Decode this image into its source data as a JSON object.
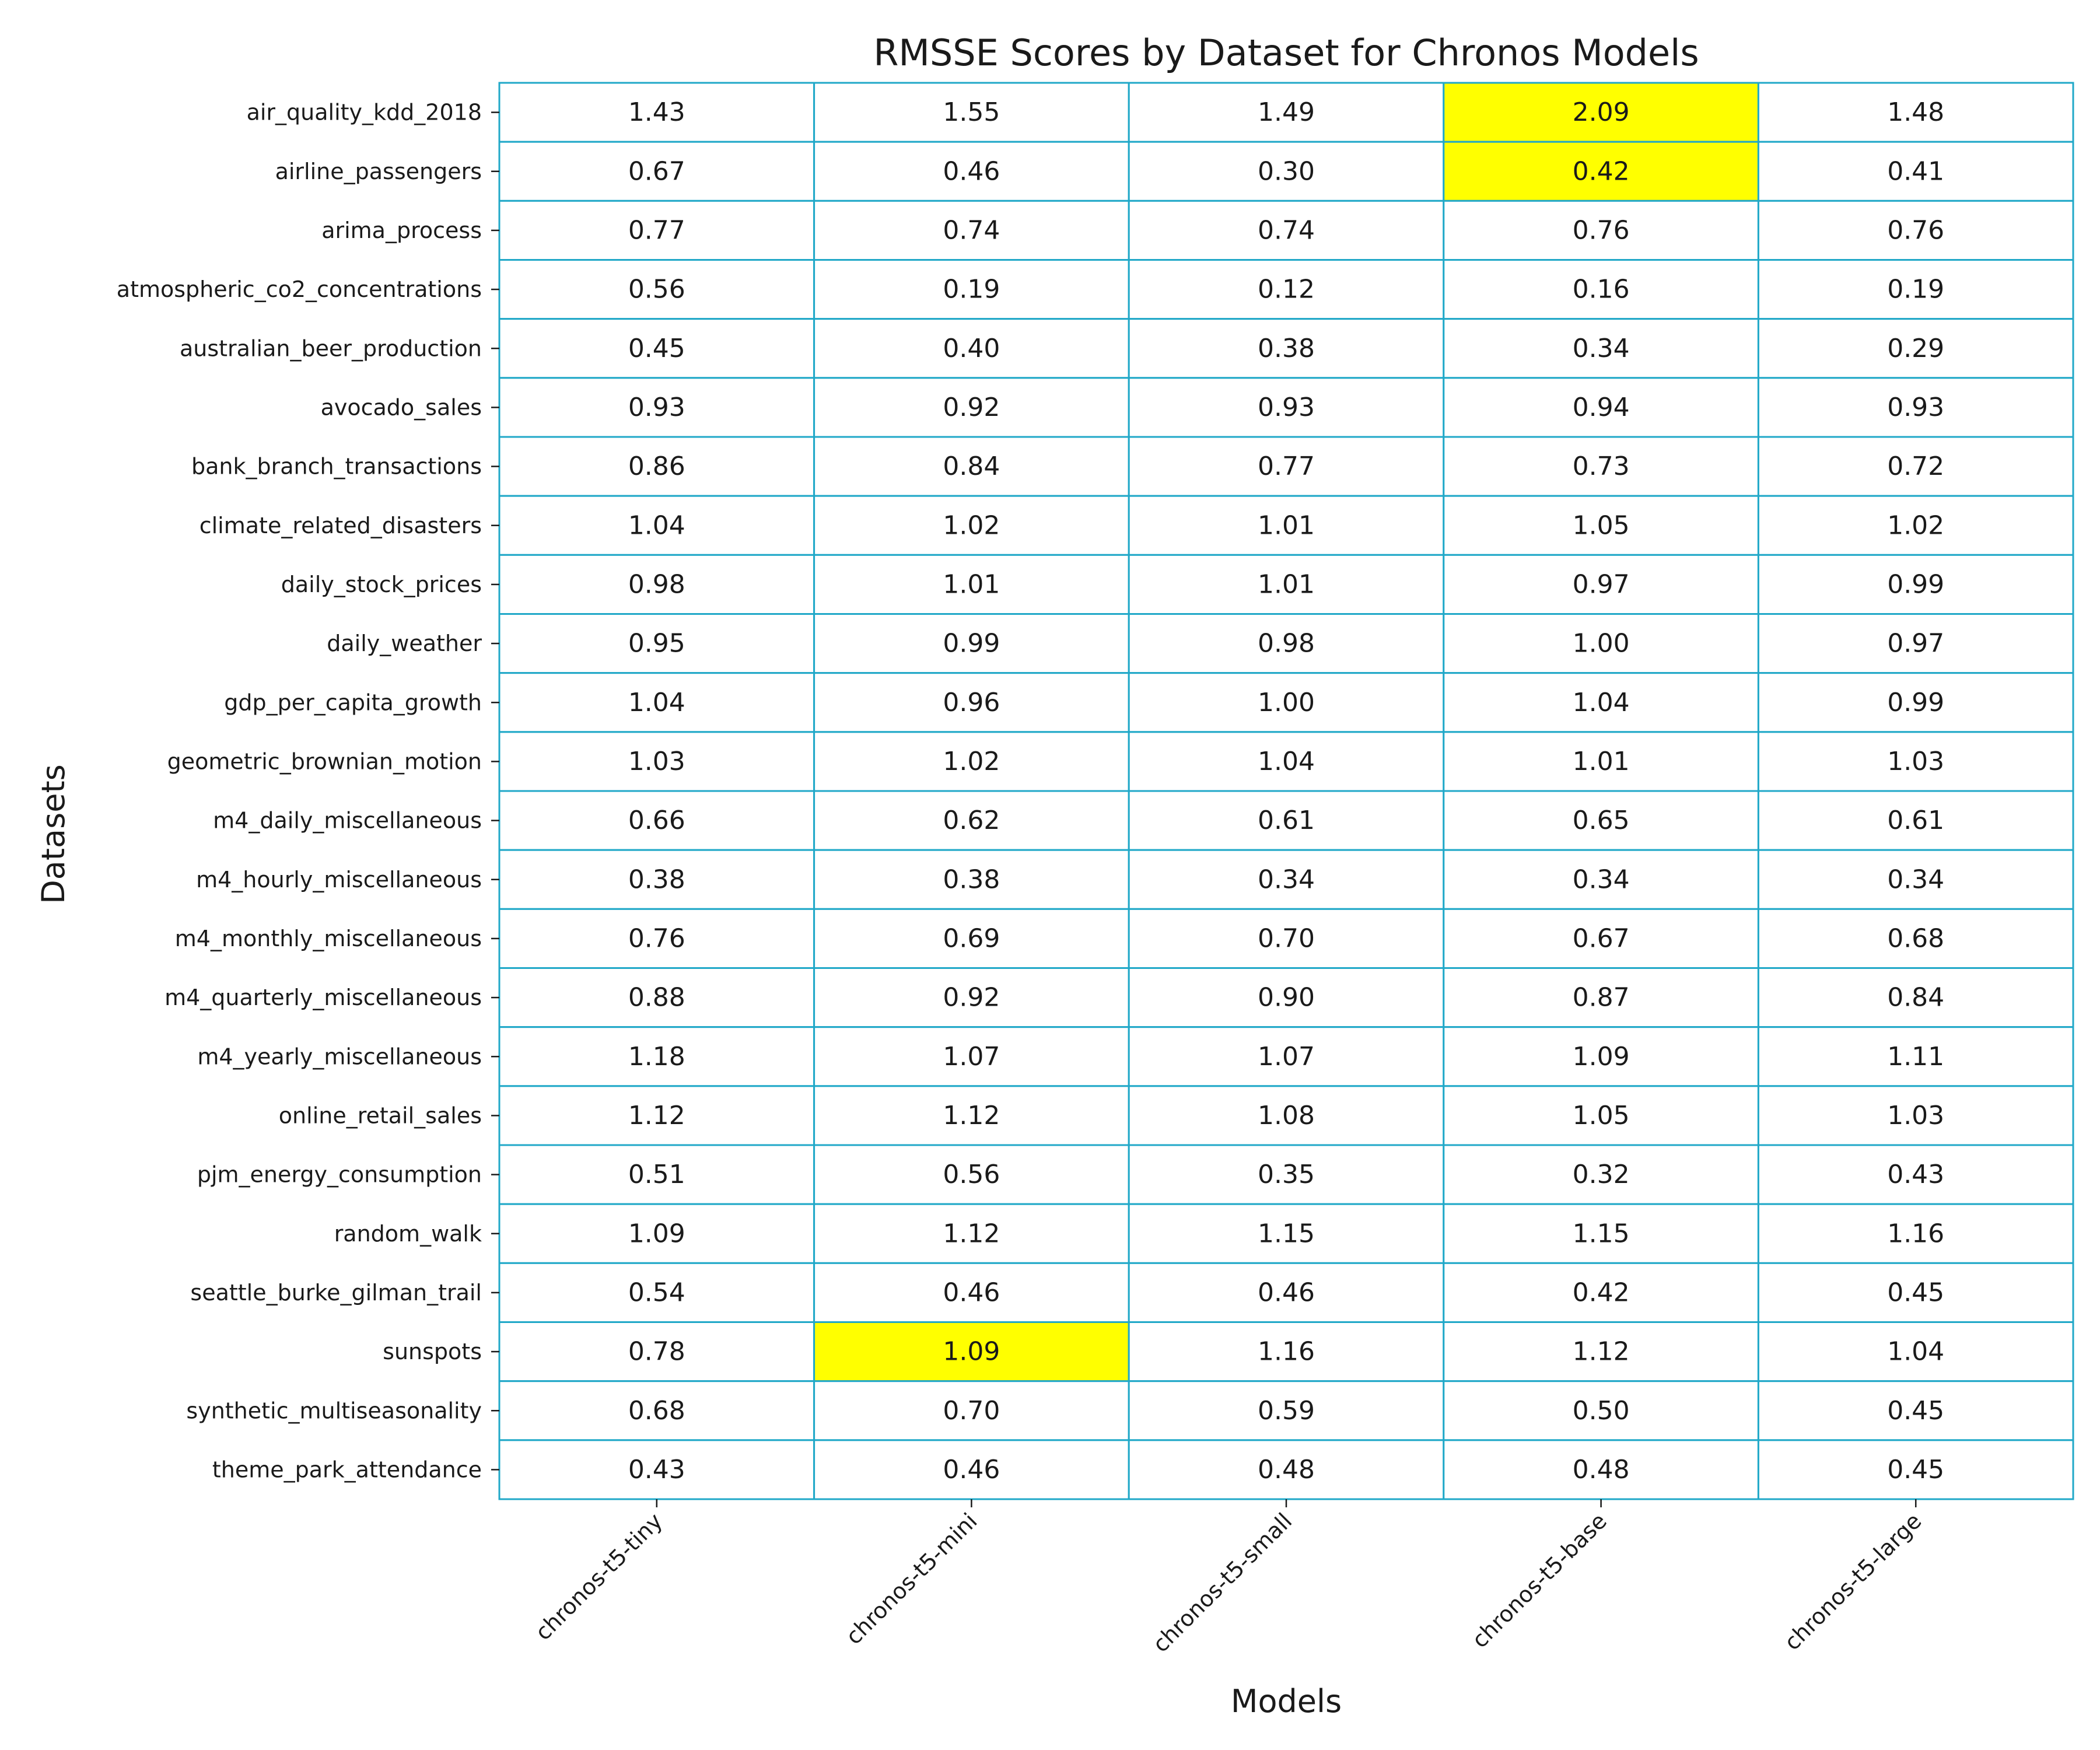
{
  "chart_data": {
    "type": "heatmap",
    "title": "RMSSE Scores by Dataset for Chronos Models",
    "xlabel": "Models",
    "ylabel": "Datasets",
    "columns": [
      "chronos-t5-tiny",
      "chronos-t5-mini",
      "chronos-t5-small",
      "chronos-t5-base",
      "chronos-t5-large"
    ],
    "rows": [
      "air_quality_kdd_2018",
      "airline_passengers",
      "arima_process",
      "atmospheric_co2_concentrations",
      "australian_beer_production",
      "avocado_sales",
      "bank_branch_transactions",
      "climate_related_disasters",
      "daily_stock_prices",
      "daily_weather",
      "gdp_per_capita_growth",
      "geometric_brownian_motion",
      "m4_daily_miscellaneous",
      "m4_hourly_miscellaneous",
      "m4_monthly_miscellaneous",
      "m4_quarterly_miscellaneous",
      "m4_yearly_miscellaneous",
      "online_retail_sales",
      "pjm_energy_consumption",
      "random_walk",
      "seattle_burke_gilman_trail",
      "sunspots",
      "synthetic_multiseasonality",
      "theme_park_attendance"
    ],
    "values": [
      [
        "1.43",
        "1.55",
        "1.49",
        "2.09",
        "1.48"
      ],
      [
        "0.67",
        "0.46",
        "0.30",
        "0.42",
        "0.41"
      ],
      [
        "0.77",
        "0.74",
        "0.74",
        "0.76",
        "0.76"
      ],
      [
        "0.56",
        "0.19",
        "0.12",
        "0.16",
        "0.19"
      ],
      [
        "0.45",
        "0.40",
        "0.38",
        "0.34",
        "0.29"
      ],
      [
        "0.93",
        "0.92",
        "0.93",
        "0.94",
        "0.93"
      ],
      [
        "0.86",
        "0.84",
        "0.77",
        "0.73",
        "0.72"
      ],
      [
        "1.04",
        "1.02",
        "1.01",
        "1.05",
        "1.02"
      ],
      [
        "0.98",
        "1.01",
        "1.01",
        "0.97",
        "0.99"
      ],
      [
        "0.95",
        "0.99",
        "0.98",
        "1.00",
        "0.97"
      ],
      [
        "1.04",
        "0.96",
        "1.00",
        "1.04",
        "0.99"
      ],
      [
        "1.03",
        "1.02",
        "1.04",
        "1.01",
        "1.03"
      ],
      [
        "0.66",
        "0.62",
        "0.61",
        "0.65",
        "0.61"
      ],
      [
        "0.38",
        "0.38",
        "0.34",
        "0.34",
        "0.34"
      ],
      [
        "0.76",
        "0.69",
        "0.70",
        "0.67",
        "0.68"
      ],
      [
        "0.88",
        "0.92",
        "0.90",
        "0.87",
        "0.84"
      ],
      [
        "1.18",
        "1.07",
        "1.07",
        "1.09",
        "1.11"
      ],
      [
        "1.12",
        "1.12",
        "1.08",
        "1.05",
        "1.03"
      ],
      [
        "0.51",
        "0.56",
        "0.35",
        "0.32",
        "0.43"
      ],
      [
        "1.09",
        "1.12",
        "1.15",
        "1.15",
        "1.16"
      ],
      [
        "0.54",
        "0.46",
        "0.46",
        "0.42",
        "0.45"
      ],
      [
        "0.78",
        "1.09",
        "1.16",
        "1.12",
        "1.04"
      ],
      [
        "0.68",
        "0.70",
        "0.59",
        "0.50",
        "0.45"
      ],
      [
        "0.43",
        "0.46",
        "0.48",
        "0.48",
        "0.45"
      ]
    ],
    "highlighted_cells": [
      {
        "row": "air_quality_kdd_2018",
        "column": "chronos-t5-base"
      },
      {
        "row": "airline_passengers",
        "column": "chronos-t5-base"
      },
      {
        "row": "sunspots",
        "column": "chronos-t5-mini"
      }
    ],
    "colors": {
      "highlight": "#ffff00",
      "normal": "#ffffff",
      "grid": "#20a8c8"
    },
    "grid": true
  }
}
